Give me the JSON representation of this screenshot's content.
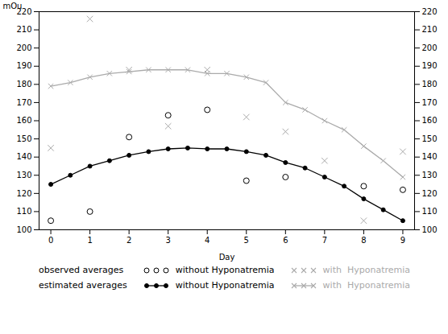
{
  "chart_data": {
    "type": "line",
    "xlabel": "Day",
    "ylabel": "mOu",
    "xlim": [
      -0.3,
      9.3
    ],
    "ylim": [
      100,
      220
    ],
    "xticks": [
      0,
      1,
      2,
      3,
      4,
      5,
      6,
      7,
      8,
      9
    ],
    "yticks": [
      100,
      110,
      120,
      130,
      140,
      150,
      160,
      170,
      180,
      190,
      200,
      210,
      220
    ],
    "y2lim": [
      100,
      220
    ],
    "y2ticks": [
      100,
      110,
      120,
      130,
      140,
      150,
      160,
      170,
      180,
      190,
      200,
      210,
      220
    ],
    "grid": false,
    "legend": "bottom",
    "annotations": [
      "observed averages",
      "estimated averages"
    ],
    "series": [
      {
        "name": "without Hyponatremia",
        "type": "scatter",
        "marker": "open_circle",
        "color": "#000000",
        "x": [
          0,
          1,
          2,
          3,
          4,
          5,
          6,
          7,
          8,
          9
        ],
        "values": [
          105,
          110,
          151,
          163,
          166,
          127,
          129,
          null,
          124,
          122
        ]
      },
      {
        "name": "with  Hyponatremia",
        "type": "scatter",
        "marker": "x",
        "color": "#aaaaaa",
        "x": [
          0,
          1,
          2,
          3,
          4,
          5,
          6,
          7,
          8,
          9
        ],
        "values": [
          145,
          216,
          188,
          157,
          188,
          162,
          154,
          138,
          105,
          143
        ]
      },
      {
        "name": "without Hyponatremia",
        "type": "line",
        "marker": "circle",
        "color": "#000000",
        "x": [
          0,
          0.5,
          1,
          1.5,
          2,
          2.5,
          3,
          3.5,
          4,
          4.5,
          5,
          5.5,
          6,
          6.5,
          7,
          7.5,
          8,
          8.5,
          9
        ],
        "values": [
          125,
          130,
          135,
          138,
          141,
          143,
          144.5,
          145,
          144.5,
          144.5,
          143,
          141,
          137,
          134,
          129,
          124,
          117,
          111,
          105
        ]
      },
      {
        "name": "with  Hyponatremia",
        "type": "line",
        "marker": "x",
        "color": "#aaaaaa",
        "x": [
          0,
          0.5,
          1,
          1.5,
          2,
          2.5,
          3,
          3.5,
          4,
          4.5,
          5,
          5.5,
          6,
          6.5,
          7,
          7.5,
          8,
          8.5,
          9
        ],
        "values": [
          179,
          181,
          184,
          186,
          187,
          188,
          188,
          188,
          186,
          186,
          184,
          181,
          170,
          166,
          160,
          155,
          146,
          138,
          129
        ]
      }
    ]
  }
}
